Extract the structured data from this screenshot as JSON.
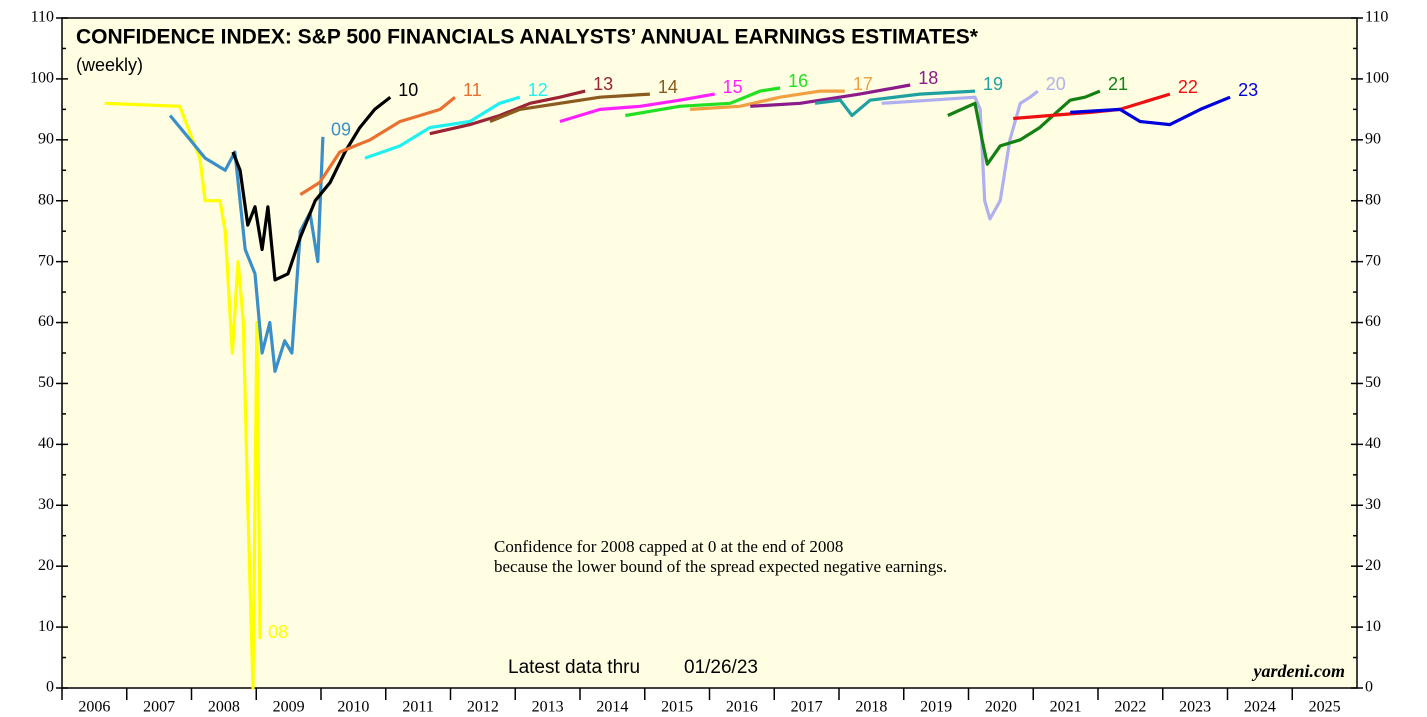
{
  "chart_data": {
    "type": "line",
    "title": "CONFIDENCE INDEX: S&P 500 FINANCIALS ANALYSTS’ ANNUAL EARNINGS ESTIMATES*",
    "subtitle": "(weekly)",
    "annotations": [
      "Confidence for 2008 capped at 0 at the end of 2008",
      "because the lower bound of the spread expected negative earnings."
    ],
    "latest_label": "Latest data thru",
    "latest_date": "01/26/23",
    "source": "yardeni.com",
    "xlim": [
      2006,
      2026
    ],
    "xticks": [
      2006,
      2007,
      2008,
      2009,
      2010,
      2011,
      2012,
      2013,
      2014,
      2015,
      2016,
      2017,
      2018,
      2019,
      2020,
      2021,
      2022,
      2023,
      2024,
      2025
    ],
    "ylim": [
      0,
      110
    ],
    "yticks": [
      0,
      10,
      20,
      30,
      40,
      50,
      60,
      70,
      80,
      90,
      100,
      110
    ],
    "series": [
      {
        "name": "08",
        "color": "#ffff00",
        "x": [
          2006.66,
          2007.82,
          2007.98,
          2008.13,
          2008.21,
          2008.44,
          2008.52,
          2008.63,
          2008.72,
          2008.8,
          2008.87,
          2008.95,
          2009.01,
          2009.06
        ],
        "values": [
          96,
          95.5,
          91,
          87,
          80,
          80,
          75,
          55,
          70,
          60,
          30,
          0,
          60,
          8
        ]
      },
      {
        "name": "09",
        "color": "#3a8fc8",
        "x": [
          2007.67,
          2007.98,
          2008.21,
          2008.52,
          2008.67,
          2008.83,
          2008.98,
          2009.09,
          2009.21,
          2009.29,
          2009.44,
          2009.55,
          2009.68,
          2009.83,
          2009.95,
          2010.03
        ],
        "values": [
          94,
          90,
          87,
          85,
          88,
          72,
          68,
          55,
          60,
          52,
          57,
          55,
          75,
          78,
          70,
          90.5
        ]
      },
      {
        "name": "10",
        "color": "#000000",
        "x": [
          2008.64,
          2008.75,
          2008.87,
          2008.98,
          2009.09,
          2009.18,
          2009.29,
          2009.49,
          2009.68,
          2009.91,
          2010.14,
          2010.37,
          2010.6,
          2010.83,
          2011.07
        ],
        "values": [
          88,
          85,
          76,
          79,
          72,
          79,
          67,
          68,
          74,
          80,
          83,
          88,
          92,
          95,
          97
        ]
      },
      {
        "name": "11",
        "color": "#e87030",
        "x": [
          2009.68,
          2009.98,
          2010.29,
          2010.76,
          2011.22,
          2011.53,
          2011.84,
          2012.07
        ],
        "values": [
          81,
          83,
          88,
          90,
          93,
          94,
          95,
          97
        ]
      },
      {
        "name": "12",
        "color": "#20f0f0",
        "x": [
          2010.68,
          2011.22,
          2011.68,
          2012.3,
          2012.76,
          2013.07
        ],
        "values": [
          87,
          89,
          92,
          93,
          96,
          97
        ]
      },
      {
        "name": "13",
        "color": "#9b2335",
        "x": [
          2011.68,
          2012.3,
          2012.76,
          2013.23,
          2013.69,
          2014.08
        ],
        "values": [
          91,
          92.5,
          94,
          96,
          97,
          98
        ]
      },
      {
        "name": "14",
        "color": "#8b5a1e",
        "x": [
          2012.61,
          2013.07,
          2013.69,
          2014.31,
          2015.08
        ],
        "values": [
          93,
          95,
          96,
          97,
          97.5
        ]
      },
      {
        "name": "15",
        "color": "#ff20ff",
        "x": [
          2013.69,
          2014.31,
          2014.93,
          2015.54,
          2016.08
        ],
        "values": [
          93,
          95,
          95.5,
          96.5,
          97.5
        ]
      },
      {
        "name": "16",
        "color": "#22e022",
        "x": [
          2014.7,
          2015.54,
          2016.32,
          2016.78,
          2017.09
        ],
        "values": [
          94,
          95.5,
          96,
          98,
          98.5
        ]
      },
      {
        "name": "17",
        "color": "#f0a040",
        "x": [
          2015.7,
          2016.47,
          2017.09,
          2017.71,
          2018.09
        ],
        "values": [
          95,
          95.5,
          97,
          98,
          98
        ]
      },
      {
        "name": "18",
        "color": "#8b1a8b",
        "x": [
          2016.63,
          2017.4,
          2018.32,
          2019.1
        ],
        "values": [
          95.5,
          96,
          97.5,
          99
        ]
      },
      {
        "name": "19",
        "color": "#20a0a0",
        "x": [
          2017.63,
          2018.02,
          2018.2,
          2018.48,
          2019.25,
          2020.1
        ],
        "values": [
          96,
          96.5,
          94,
          96.5,
          97.5,
          98
        ]
      },
      {
        "name": "20",
        "color": "#b0b0f0",
        "x": [
          2018.66,
          2019.41,
          2020.1,
          2020.18,
          2020.25,
          2020.33,
          2020.49,
          2020.64,
          2020.8,
          2020.95,
          2021.07
        ],
        "values": [
          96,
          96.5,
          97,
          95,
          80,
          77,
          80,
          90,
          96,
          97,
          98
        ]
      },
      {
        "name": "21",
        "color": "#128012",
        "x": [
          2019.68,
          2020.1,
          2020.21,
          2020.29,
          2020.49,
          2020.8,
          2021.1,
          2021.41,
          2021.57,
          2021.8,
          2022.03
        ],
        "values": [
          94,
          96,
          90,
          86,
          89,
          90,
          92,
          95,
          96.5,
          97,
          98
        ]
      },
      {
        "name": "22",
        "color": "#ee1010",
        "x": [
          2020.69,
          2021.26,
          2021.88,
          2022.34,
          2022.8,
          2023.11
        ],
        "values": [
          93.5,
          94,
          94.5,
          95,
          96.5,
          97.5
        ]
      },
      {
        "name": "23",
        "color": "#0000dd",
        "x": [
          2021.57,
          2022.34,
          2022.65,
          2023.11,
          2023.58,
          2024.04
        ],
        "values": [
          94.5,
          95,
          93,
          92.5,
          95,
          97
        ]
      }
    ]
  }
}
